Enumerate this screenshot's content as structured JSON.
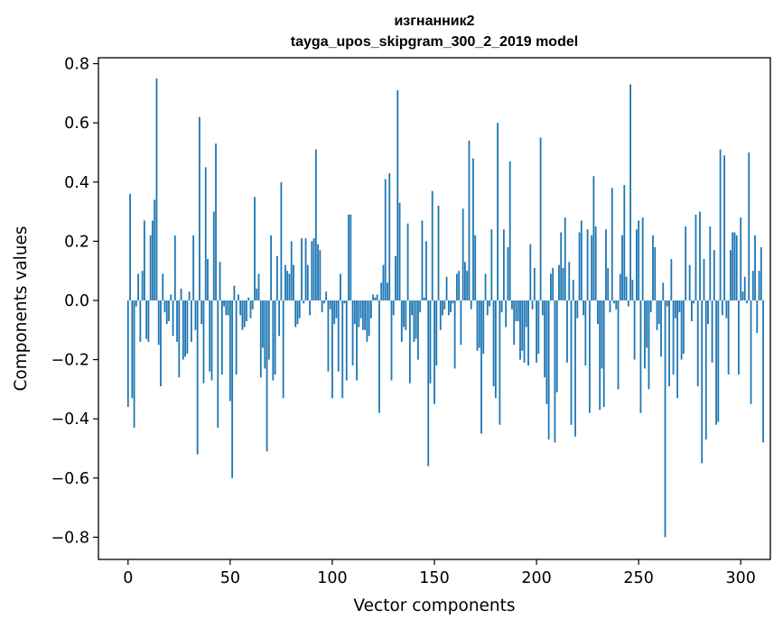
{
  "chart_data": {
    "type": "bar",
    "title_line1": "изгнанник2",
    "title_line2": "tayga_upos_skipgram_300_2_2019 model",
    "xlabel": "Vector components",
    "ylabel": "Components values",
    "xlim": [
      -14.5,
      314.5
    ],
    "ylim": [
      -0.875,
      0.82
    ],
    "xticks": [
      0,
      50,
      100,
      150,
      200,
      250,
      300
    ],
    "xtick_labels": [
      "0",
      "50",
      "100",
      "150",
      "200",
      "250",
      "300"
    ],
    "yticks": [
      -0.8,
      -0.6,
      -0.4,
      -0.2,
      0.0,
      0.2,
      0.4,
      0.6,
      0.8
    ],
    "ytick_labels": [
      "−0.8",
      "−0.6",
      "−0.4",
      "−0.2",
      "0.0",
      "0.2",
      "0.4",
      "0.6",
      "0.8"
    ],
    "bar_color": "#1f77b4",
    "bar_width": 0.8,
    "values": [
      -0.36,
      0.36,
      -0.33,
      -0.43,
      -0.02,
      0.09,
      -0.14,
      0.1,
      0.27,
      -0.13,
      -0.14,
      0.22,
      0.27,
      0.34,
      0.75,
      -0.15,
      -0.29,
      0.09,
      -0.04,
      -0.08,
      -0.07,
      0.02,
      -0.12,
      0.22,
      -0.14,
      -0.26,
      0.04,
      -0.2,
      -0.19,
      -0.18,
      0.03,
      -0.14,
      0.22,
      -0.1,
      -0.52,
      0.62,
      -0.08,
      -0.28,
      0.45,
      0.14,
      -0.24,
      -0.27,
      0.3,
      0.53,
      -0.43,
      0.13,
      -0.25,
      -0.02,
      -0.05,
      -0.05,
      -0.34,
      -0.6,
      0.05,
      -0.25,
      0.02,
      -0.05,
      -0.1,
      -0.09,
      -0.07,
      0.01,
      -0.06,
      -0.03,
      0.35,
      0.04,
      0.09,
      -0.26,
      -0.16,
      -0.23,
      -0.51,
      -0.2,
      0.22,
      -0.27,
      -0.25,
      0.15,
      -0.12,
      0.4,
      -0.33,
      0.12,
      0.1,
      0.09,
      0.2,
      0.12,
      -0.09,
      -0.08,
      -0.06,
      0.21,
      -0.01,
      0.21,
      0.12,
      -0.05,
      0.2,
      0.21,
      0.51,
      0.19,
      0.17,
      -0.04,
      -0.01,
      0.03,
      -0.24,
      -0.03,
      -0.33,
      -0.08,
      -0.06,
      -0.24,
      0.09,
      -0.33,
      -0.01,
      -0.27,
      0.29,
      0.29,
      -0.22,
      -0.08,
      -0.27,
      -0.09,
      -0.06,
      -0.1,
      -0.1,
      -0.14,
      -0.12,
      -0.06,
      0.02,
      0.01,
      0.02,
      -0.38,
      0.06,
      0.12,
      0.41,
      0.06,
      0.43,
      -0.27,
      -0.05,
      0.15,
      0.71,
      0.33,
      -0.14,
      -0.09,
      -0.1,
      0.26,
      -0.28,
      -0.05,
      -0.14,
      -0.13,
      -0.2,
      -0.04,
      0.27,
      0.01,
      0.2,
      -0.56,
      -0.28,
      0.37,
      -0.35,
      -0.22,
      0.32,
      -0.1,
      -0.05,
      -0.03,
      0.08,
      -0.05,
      -0.04,
      -0.01,
      -0.23,
      0.09,
      0.1,
      -0.15,
      0.31,
      0.13,
      0.1,
      0.54,
      -0.03,
      0.48,
      0.22,
      -0.17,
      -0.16,
      -0.45,
      -0.18,
      0.09,
      -0.05,
      -0.02,
      0.24,
      -0.29,
      -0.33,
      0.6,
      -0.42,
      -0.04,
      0.24,
      -0.09,
      0.18,
      0.47,
      -0.03,
      -0.15,
      -0.07,
      -0.07,
      -0.2,
      -0.17,
      -0.21,
      -0.09,
      -0.22,
      0.19,
      -0.03,
      0.11,
      -0.21,
      -0.18,
      0.55,
      -0.05,
      -0.26,
      -0.35,
      -0.47,
      0.09,
      0.11,
      -0.48,
      -0.31,
      0.12,
      0.23,
      0.11,
      0.28,
      -0.21,
      0.13,
      -0.42,
      0.07,
      -0.46,
      -0.06,
      0.23,
      0.27,
      -0.05,
      -0.22,
      0.24,
      -0.38,
      0.22,
      0.42,
      0.25,
      -0.08,
      -0.37,
      -0.23,
      -0.36,
      0.24,
      0.11,
      -0.04,
      0.38,
      -0.01,
      -0.03,
      -0.3,
      0.09,
      0.22,
      0.39,
      0.08,
      -0.02,
      0.73,
      0.07,
      -0.2,
      0.24,
      0.27,
      -0.38,
      0.28,
      -0.23,
      -0.16,
      -0.3,
      -0.04,
      0.22,
      0.18,
      -0.1,
      -0.08,
      -0.19,
      0.06,
      -0.8,
      -0.02,
      -0.29,
      0.14,
      -0.25,
      -0.06,
      -0.33,
      -0.04,
      -0.2,
      -0.18,
      0.25,
      0.0,
      0.12,
      -0.07,
      -0.01,
      0.29,
      -0.29,
      0.3,
      -0.55,
      0.14,
      -0.47,
      -0.08,
      0.25,
      -0.21,
      0.17,
      -0.42,
      -0.41,
      0.51,
      -0.05,
      0.49,
      -0.06,
      -0.25,
      0.17,
      0.23,
      0.23,
      0.22,
      -0.25,
      0.28,
      0.03,
      0.08,
      -0.01,
      0.5,
      -0.35,
      0.1,
      0.22,
      -0.11,
      0.1,
      0.18,
      -0.48,
      0.0
    ]
  }
}
